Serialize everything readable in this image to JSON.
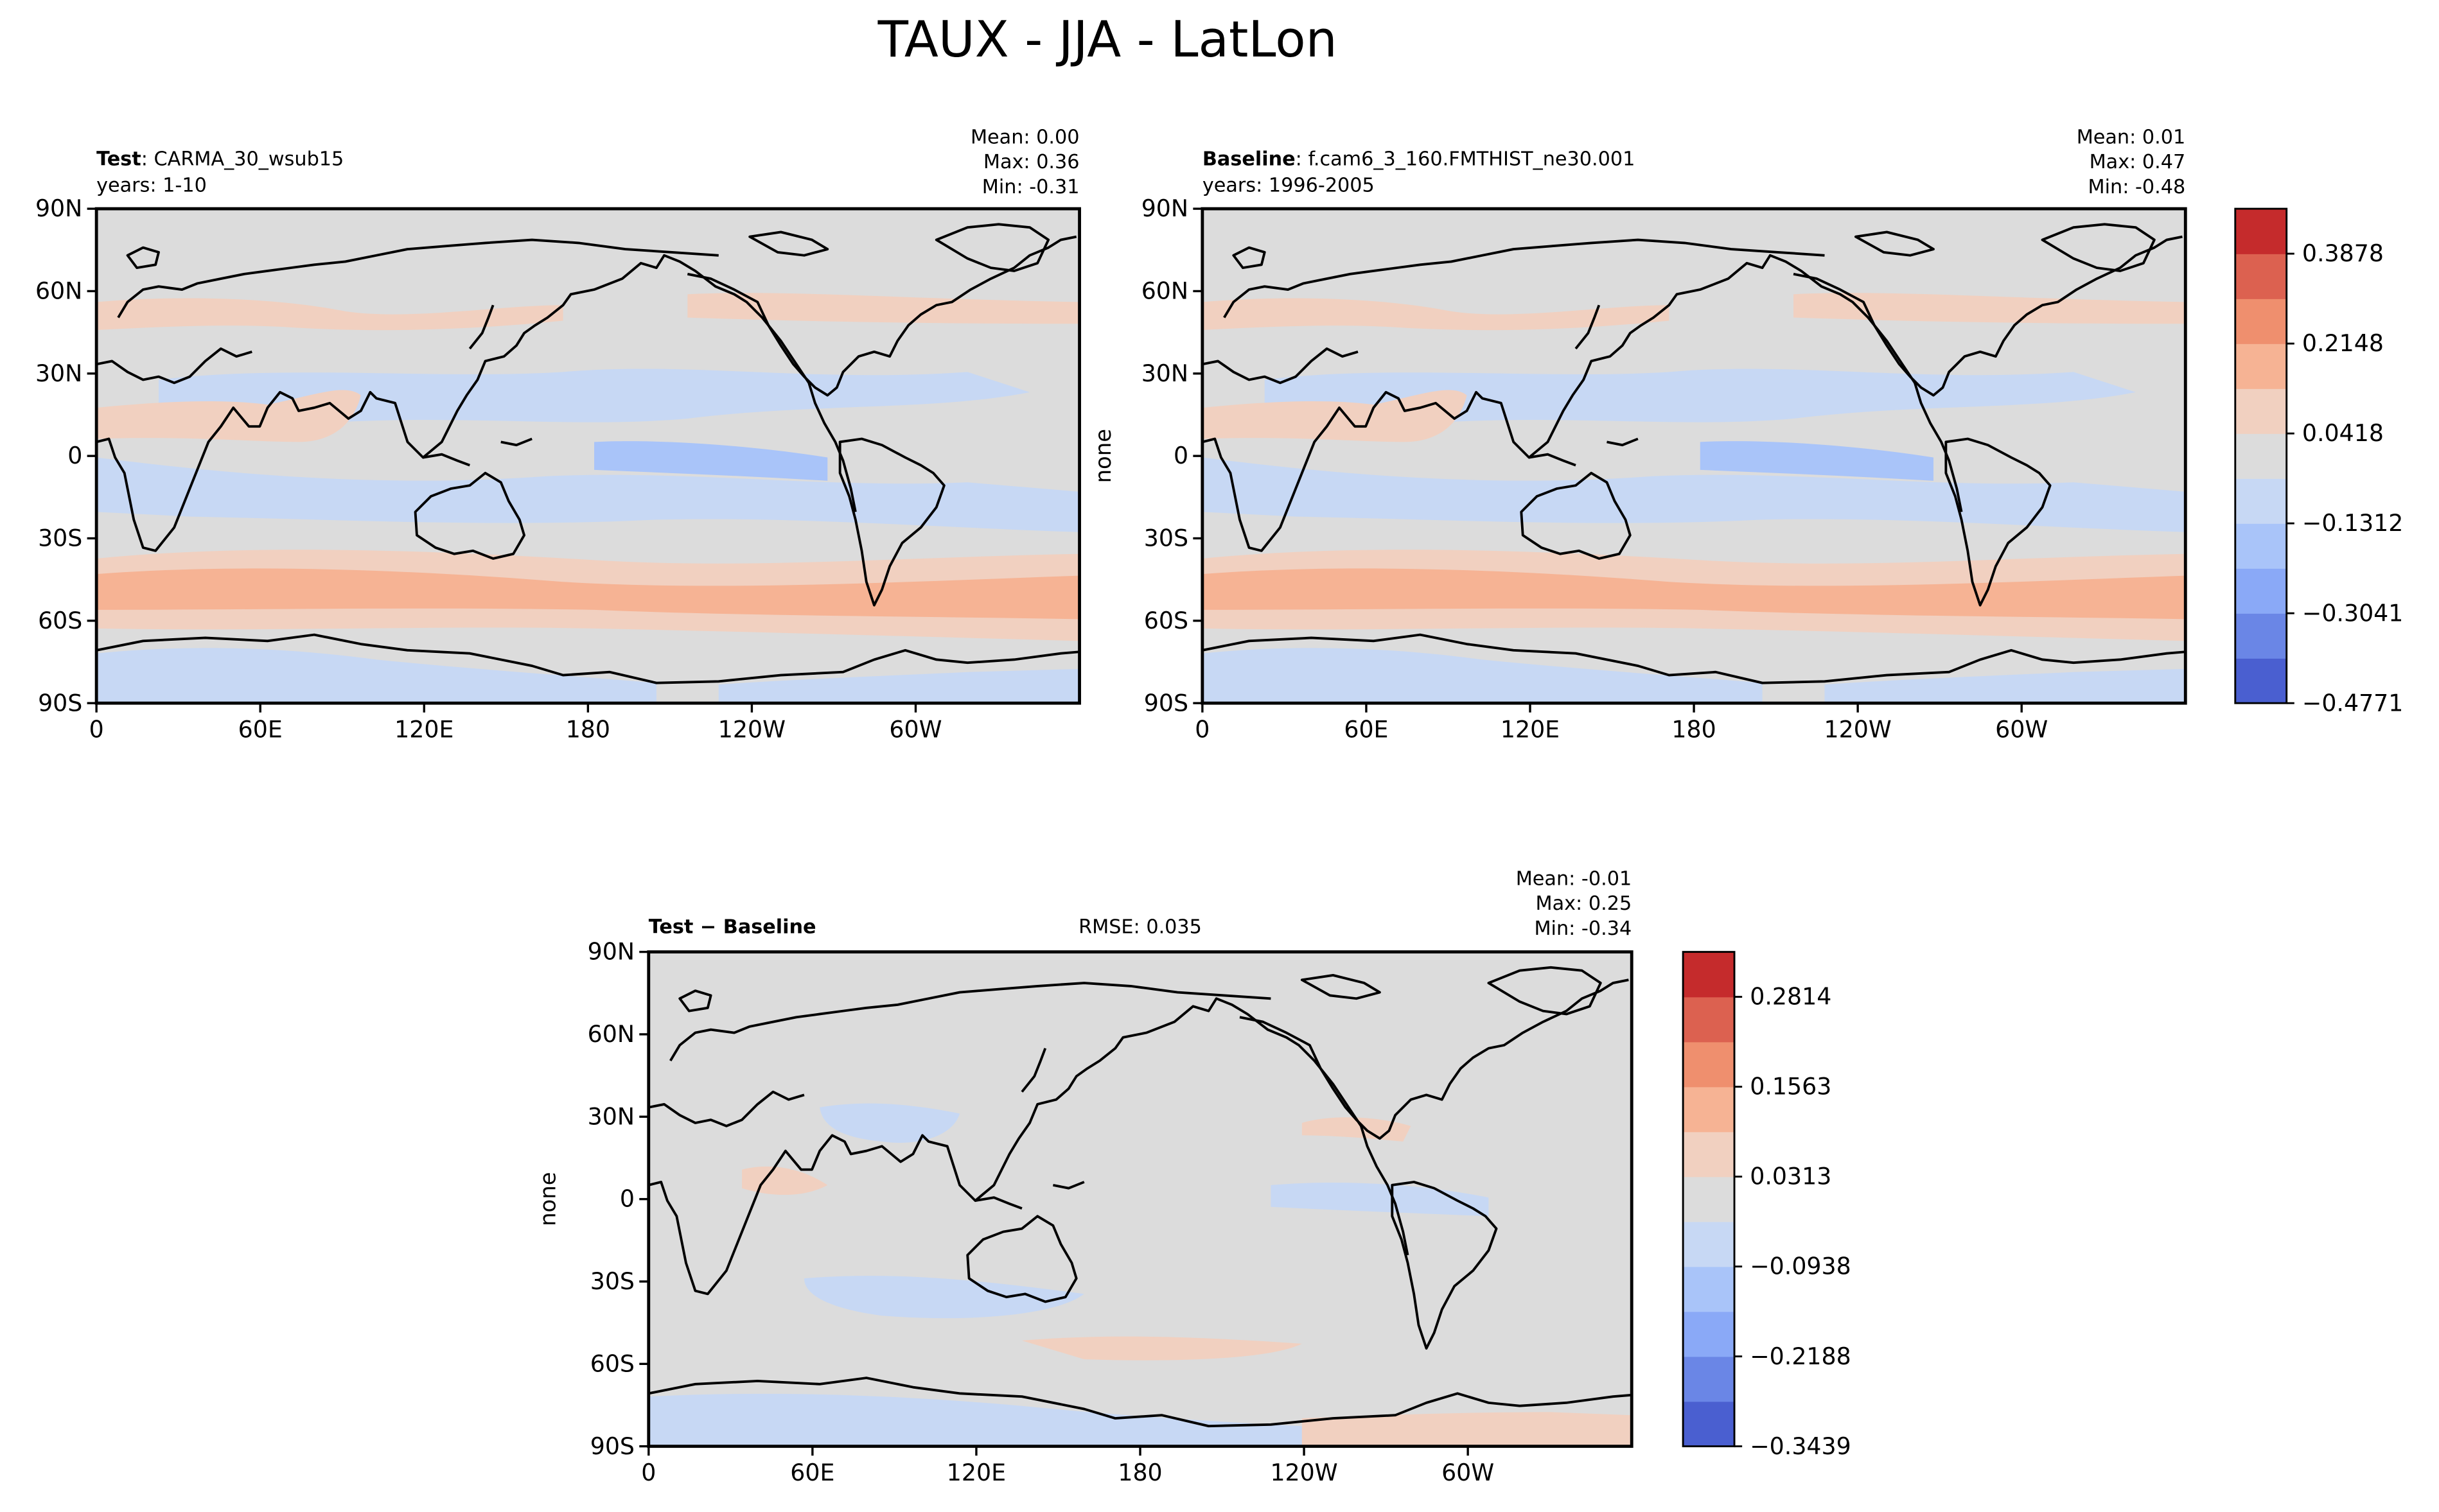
{
  "figure": {
    "suptitle": "TAUX - JJA - LatLon",
    "colors": {
      "land_background": "#dcdcdc",
      "coastline": "#000000",
      "frame": "#000000"
    }
  },
  "panels": {
    "test": {
      "header_bold": "Test",
      "header_rest": ": CARMA_30_wsub15",
      "subheader": "years: 1-10",
      "stats": [
        "Mean:  0.00",
        "Max:  0.36",
        "Min: -0.31"
      ],
      "ylabel": ""
    },
    "baseline": {
      "header_bold": "Baseline",
      "header_rest": ": f.cam6_3_160.FMTHIST_ne30.001",
      "subheader": "years: 1996-2005",
      "stats": [
        "Mean:  0.01",
        "Max:  0.47",
        "Min: -0.48"
      ],
      "ylabel": "none"
    },
    "diff": {
      "header_bold": "Test − Baseline",
      "rmse": "RMSE: 0.035",
      "stats": [
        "Mean: -0.01",
        "Max:  0.25",
        "Min: -0.34"
      ],
      "ylabel": "none"
    }
  },
  "axes": {
    "lat_ticks": [
      "90N",
      "60N",
      "30N",
      "0",
      "30S",
      "60S",
      "90S"
    ],
    "lon_ticks": [
      "0",
      "60E",
      "120E",
      "180",
      "120W",
      "60W"
    ]
  },
  "colorbars": {
    "main": {
      "colors": [
        "#4a5fd0",
        "#6a86e6",
        "#8aa9f7",
        "#a9c4f9",
        "#c7d8f4",
        "#dcdcdc",
        "#f1d0c0",
        "#f6b394",
        "#ef8f6e",
        "#dc6150",
        "#c52b2c"
      ],
      "tick_labels": [
        "−0.4771",
        "−0.3041",
        "−0.1312",
        "0.0418",
        "0.2148",
        "0.3878"
      ]
    },
    "diff": {
      "colors": [
        "#4a5fd0",
        "#6a86e6",
        "#8aa9f7",
        "#a9c4f9",
        "#c7d8f4",
        "#dcdcdc",
        "#f1d0c0",
        "#f6b394",
        "#ef8f6e",
        "#dc6150",
        "#c52b2c"
      ],
      "tick_labels": [
        "−0.3439",
        "−0.2188",
        "−0.0938",
        "0.0313",
        "0.1563",
        "0.2814"
      ]
    }
  }
}
